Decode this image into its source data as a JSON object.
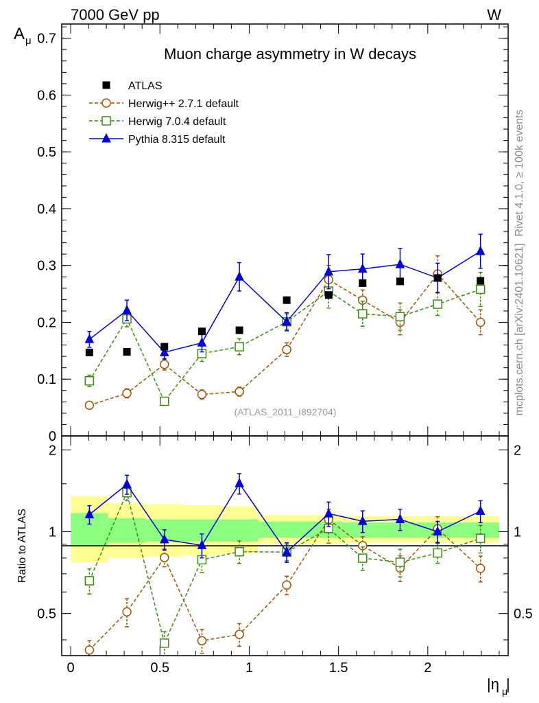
{
  "header": {
    "left_label": "7000 GeV pp",
    "right_label": "W"
  },
  "side_labels": {
    "rivet": "Rivet 4.1.0, ≥ 100k events",
    "mcplots": "mcplots.cern.ch [arXiv:2401.10621]"
  },
  "chart_data": [
    {
      "type": "scatter",
      "panel": "main",
      "title": "Muon charge asymmetry in W decays",
      "analysis_label": "(ATLAS_2011_I892704)",
      "ylabel_main": "A",
      "ylabel_sub": "μ",
      "ylim": [
        0,
        0.725
      ],
      "xlim": [
        -0.05,
        2.45
      ],
      "yticks": [
        0,
        0.1,
        0.2,
        0.3,
        0.4,
        0.5,
        0.6,
        0.7
      ],
      "ytick_labels": [
        "0",
        "0.1",
        "0.2",
        "0.3",
        "0.4",
        "0.5",
        "0.6",
        "0.7"
      ],
      "x": [
        0.105,
        0.315,
        0.525,
        0.735,
        0.945,
        1.21,
        1.445,
        1.635,
        1.845,
        2.055,
        2.295
      ],
      "data_series": {
        "name": "ATLAS",
        "values": [
          0.147,
          0.148,
          0.157,
          0.184,
          0.186,
          0.239,
          0.248,
          0.269,
          0.272,
          0.278,
          0.273
        ]
      },
      "series": [
        {
          "name": "Herwig++ 2.7.1 default",
          "color": "#a0520a",
          "marker": "circle",
          "dashed": true,
          "values": [
            0.054,
            0.075,
            0.126,
            0.073,
            0.078,
            0.152,
            0.275,
            0.239,
            0.2,
            0.285,
            0.2
          ],
          "errors": [
            0.004,
            0.008,
            0.01,
            0.008,
            0.008,
            0.012,
            0.025,
            0.018,
            0.022,
            0.032,
            0.022
          ]
        },
        {
          "name": "Herwig 7.0.4 default",
          "color": "#3a8a10",
          "marker": "square",
          "dashed": true,
          "values": [
            0.097,
            0.206,
            0.061,
            0.145,
            0.157,
            0.201,
            0.255,
            0.215,
            0.21,
            0.232,
            0.258
          ],
          "errors": [
            0.01,
            0.014,
            0.006,
            0.014,
            0.014,
            0.014,
            0.03,
            0.022,
            0.024,
            0.02,
            0.03
          ]
        },
        {
          "name": "Pythia 8.315 default",
          "color": "#0000dd",
          "marker": "triangle",
          "dashed": false,
          "values": [
            0.17,
            0.221,
            0.147,
            0.164,
            0.28,
            0.201,
            0.289,
            0.294,
            0.302,
            0.278,
            0.325
          ],
          "errors": [
            0.014,
            0.018,
            0.012,
            0.016,
            0.025,
            0.016,
            0.03,
            0.026,
            0.028,
            0.026,
            0.03
          ]
        }
      ]
    },
    {
      "type": "scatter",
      "panel": "ratio",
      "ylabel": "Ratio to ATLAS",
      "xlabel_main": "|η",
      "xlabel_sub": "μ",
      "ylim": [
        0.35,
        2.25
      ],
      "xlim": [
        -0.05,
        2.45
      ],
      "yticks": [
        0.5,
        1,
        2
      ],
      "ytick_labels": [
        "0.5",
        "1",
        "2"
      ],
      "xticks": [
        0,
        0.5,
        1,
        1.5,
        2
      ],
      "xtick_labels": [
        "0",
        "0.5",
        "1",
        "1.5",
        "2"
      ],
      "bin_edges": [
        0,
        0.21,
        0.42,
        0.63,
        0.84,
        1.05,
        1.37,
        1.52,
        1.74,
        1.95,
        2.18,
        2.4
      ],
      "band_inner": [
        [
          0.89,
          1.17
        ],
        [
          0.91,
          1.12
        ],
        [
          0.92,
          1.11
        ],
        [
          0.92,
          1.11
        ],
        [
          0.92,
          1.11
        ],
        [
          0.95,
          1.09
        ],
        [
          0.95,
          1.09
        ],
        [
          0.95,
          1.08
        ],
        [
          0.95,
          1.08
        ],
        [
          0.95,
          1.08
        ],
        [
          0.95,
          1.08
        ]
      ],
      "band_outer": [
        [
          0.77,
          1.35
        ],
        [
          0.8,
          1.27
        ],
        [
          0.81,
          1.26
        ],
        [
          0.82,
          1.25
        ],
        [
          0.83,
          1.24
        ],
        [
          0.9,
          1.15
        ],
        [
          0.9,
          1.15
        ],
        [
          0.91,
          1.14
        ],
        [
          0.91,
          1.14
        ],
        [
          0.91,
          1.14
        ],
        [
          0.91,
          1.14
        ]
      ],
      "x": [
        0.105,
        0.315,
        0.525,
        0.735,
        0.945,
        1.21,
        1.445,
        1.635,
        1.845,
        2.055,
        2.295
      ],
      "series": [
        {
          "name": "Herwig++ 2.7.1 default",
          "values": [
            0.367,
            0.507,
            0.803,
            0.397,
            0.419,
            0.636,
            1.109,
            0.888,
            0.735,
            1.025,
            0.733
          ],
          "errors": [
            0.03,
            0.06,
            0.06,
            0.04,
            0.04,
            0.05,
            0.1,
            0.07,
            0.08,
            0.11,
            0.08
          ]
        },
        {
          "name": "Herwig 7.0.4 default",
          "values": [
            0.66,
            1.392,
            0.389,
            0.788,
            0.844,
            0.841,
            1.028,
            0.799,
            0.772,
            0.835,
            0.945
          ],
          "errors": [
            0.07,
            0.09,
            0.04,
            0.08,
            0.08,
            0.06,
            0.12,
            0.08,
            0.09,
            0.07,
            0.11
          ]
        },
        {
          "name": "Pythia 8.315 default",
          "values": [
            1.156,
            1.493,
            0.936,
            0.891,
            1.505,
            0.841,
            1.165,
            1.093,
            1.11,
            1.0,
            1.19
          ],
          "errors": [
            0.09,
            0.12,
            0.08,
            0.09,
            0.13,
            0.07,
            0.12,
            0.1,
            0.1,
            0.09,
            0.11
          ]
        }
      ]
    }
  ]
}
